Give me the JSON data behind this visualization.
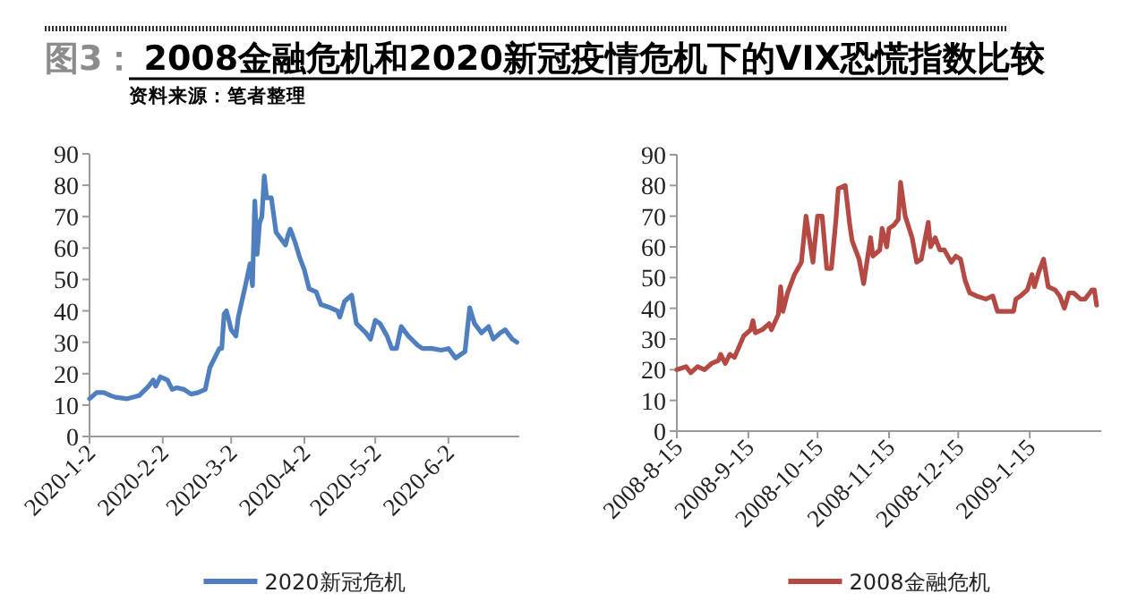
{
  "chart_data": [
    {
      "type": "line",
      "title": "2008金融危机和2020新冠疫情危机下的VIX恐慌指数比较",
      "annotations": [
        "图3：",
        "资料来源：笔者整理"
      ],
      "legend": "bottom",
      "xlim": [
        "2020-01-02",
        "2020-07-02"
      ],
      "ylim": [
        0,
        90
      ],
      "yticks": [
        0,
        10,
        20,
        30,
        40,
        50,
        60,
        70,
        80,
        90
      ],
      "xticks": [
        {
          "value": "2020-01-02",
          "label": "2020-1-2"
        },
        {
          "value": "2020-02-02",
          "label": "2020-2-2"
        },
        {
          "value": "2020-03-02",
          "label": "2020-3-2"
        },
        {
          "value": "2020-04-02",
          "label": "2020-4-2"
        },
        {
          "value": "2020-05-02",
          "label": "2020-5-2"
        },
        {
          "value": "2020-06-02",
          "label": "2020-6-2"
        }
      ],
      "series": [
        {
          "name": "2020新冠危机",
          "color": "#4f7fbf",
          "x": [
            "2020-01-02",
            "2020-01-05",
            "2020-01-08",
            "2020-01-11",
            "2020-01-13",
            "2020-01-18",
            "2020-01-23",
            "2020-01-27",
            "2020-01-29",
            "2020-01-30",
            "2020-02-01",
            "2020-02-04",
            "2020-02-06",
            "2020-02-08",
            "2020-02-11",
            "2020-02-14",
            "2020-02-17",
            "2020-02-20",
            "2020-02-22",
            "2020-02-26",
            "2020-02-27",
            "2020-02-28",
            "2020-02-29",
            "2020-03-02",
            "2020-03-04",
            "2020-03-05",
            "2020-03-08",
            "2020-03-10",
            "2020-03-11",
            "2020-03-12",
            "2020-03-13",
            "2020-03-14",
            "2020-03-15",
            "2020-03-16",
            "2020-03-17",
            "2020-03-19",
            "2020-03-21",
            "2020-03-24",
            "2020-03-25",
            "2020-03-26",
            "2020-03-27",
            "2020-03-29",
            "2020-03-31",
            "2020-04-02",
            "2020-04-04",
            "2020-04-07",
            "2020-04-09",
            "2020-04-13",
            "2020-04-16",
            "2020-04-17",
            "2020-04-19",
            "2020-04-22",
            "2020-04-24",
            "2020-04-28",
            "2020-04-30",
            "2020-05-02",
            "2020-05-04",
            "2020-05-07",
            "2020-05-09",
            "2020-05-11",
            "2020-05-13",
            "2020-05-16",
            "2020-05-20",
            "2020-05-22",
            "2020-05-26",
            "2020-05-30",
            "2020-06-02",
            "2020-06-05",
            "2020-06-09",
            "2020-06-11",
            "2020-06-13",
            "2020-06-16",
            "2020-06-19",
            "2020-06-21",
            "2020-06-24",
            "2020-06-26",
            "2020-06-29",
            "2020-07-01"
          ],
          "values": [
            12,
            14,
            14,
            13,
            12.5,
            12,
            13,
            16,
            18,
            16,
            19,
            18,
            15,
            15.5,
            15,
            13.5,
            14,
            15,
            22,
            28,
            28,
            39,
            40,
            34,
            32,
            38,
            48,
            55,
            48,
            75,
            58,
            68,
            70,
            83,
            76,
            76,
            65,
            62,
            61,
            64,
            66,
            62,
            57,
            53,
            47,
            46,
            42,
            41,
            40,
            38,
            43,
            45,
            36,
            33,
            31,
            37,
            36,
            32,
            28,
            28,
            35,
            32,
            29,
            28,
            28,
            27.5,
            28,
            25,
            27,
            41,
            36,
            33,
            35,
            31,
            33,
            34,
            31,
            30
          ]
        }
      ]
    },
    {
      "type": "line",
      "legend": "bottom",
      "xlim": [
        "2008-08-15",
        "2009-02-15"
      ],
      "ylim": [
        0,
        90
      ],
      "yticks": [
        0,
        10,
        20,
        30,
        40,
        50,
        60,
        70,
        80,
        90
      ],
      "xticks": [
        {
          "value": "2008-08-15",
          "label": "2008-8-15"
        },
        {
          "value": "2008-09-15",
          "label": "2008-9-15"
        },
        {
          "value": "2008-10-15",
          "label": "2008-10-15"
        },
        {
          "value": "2008-11-15",
          "label": "2008-11-15"
        },
        {
          "value": "2008-12-15",
          "label": "2008-12-15"
        },
        {
          "value": "2009-01-15",
          "label": "2009-1-15"
        }
      ],
      "series": [
        {
          "name": "2008金融危机",
          "color": "#b54a45",
          "x": [
            "2008-08-15",
            "2008-08-19",
            "2008-08-21",
            "2008-08-24",
            "2008-08-27",
            "2008-08-30",
            "2008-09-02",
            "2008-09-03",
            "2008-09-05",
            "2008-09-07",
            "2008-09-09",
            "2008-09-13",
            "2008-09-16",
            "2008-09-17",
            "2008-09-18",
            "2008-09-21",
            "2008-09-24",
            "2008-09-25",
            "2008-09-28",
            "2008-09-29",
            "2008-09-30",
            "2008-10-02",
            "2008-10-05",
            "2008-10-08",
            "2008-10-10",
            "2008-10-12",
            "2008-10-13",
            "2008-10-15",
            "2008-10-17",
            "2008-10-19",
            "2008-10-21",
            "2008-10-23",
            "2008-10-24",
            "2008-10-27",
            "2008-10-29",
            "2008-10-30",
            "2008-11-02",
            "2008-11-04",
            "2008-11-07",
            "2008-11-08",
            "2008-11-11",
            "2008-11-12",
            "2008-11-14",
            "2008-11-15",
            "2008-11-17",
            "2008-11-19",
            "2008-11-20",
            "2008-11-22",
            "2008-11-25",
            "2008-11-27",
            "2008-11-29",
            "2008-12-02",
            "2008-12-03",
            "2008-12-05",
            "2008-12-07",
            "2008-12-09",
            "2008-12-12",
            "2008-12-14",
            "2008-12-16",
            "2008-12-18",
            "2008-12-20",
            "2008-12-23",
            "2008-12-27",
            "2008-12-30",
            "2009-01-01",
            "2009-01-05",
            "2009-01-08",
            "2009-01-09",
            "2009-01-11",
            "2009-01-14",
            "2009-01-16",
            "2009-01-17",
            "2009-01-19",
            "2009-01-21",
            "2009-01-23",
            "2009-01-26",
            "2009-01-28",
            "2009-01-30",
            "2009-02-01",
            "2009-02-03",
            "2009-02-06",
            "2009-02-08",
            "2009-02-11",
            "2009-02-12",
            "2009-02-13"
          ],
          "values": [
            20,
            21,
            19,
            21,
            20,
            22,
            23,
            25,
            22,
            25,
            24,
            31,
            33,
            36,
            32,
            33,
            35,
            33,
            38,
            47,
            39,
            45,
            51,
            55,
            70,
            60,
            55,
            70,
            70,
            53,
            53,
            69,
            79,
            80,
            67,
            62,
            56,
            48,
            63,
            57,
            59,
            66,
            60,
            66,
            67,
            69,
            81,
            70,
            63,
            55,
            56,
            68,
            60,
            63,
            59,
            59,
            55,
            57,
            56,
            49,
            45,
            44,
            43,
            44,
            39,
            39,
            39,
            43,
            44,
            46,
            51,
            47,
            52,
            56,
            47,
            46,
            44,
            40,
            45,
            45,
            43,
            43,
            46,
            46,
            41
          ]
        }
      ]
    }
  ]
}
